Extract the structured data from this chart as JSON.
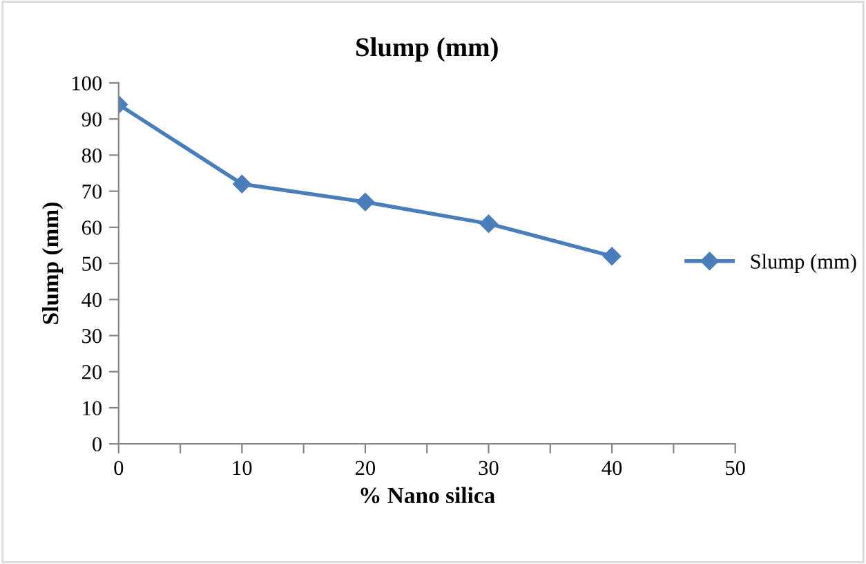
{
  "chart_data": {
    "type": "line",
    "title": "Slump (mm)",
    "xlabel": "% Nano silica",
    "ylabel": "Slump (mm)",
    "x": [
      0,
      10,
      20,
      30,
      40
    ],
    "series": [
      {
        "name": "Slump (mm)",
        "color": "#4a7ebb",
        "values": [
          94,
          72,
          67,
          61,
          52
        ]
      }
    ],
    "xlim": [
      0,
      50
    ],
    "xticks": [
      0,
      {
        "value": 5,
        "label": null
      },
      10,
      {
        "value": 15,
        "label": null
      },
      20,
      {
        "value": 25,
        "label": null
      },
      30,
      {
        "value": 35,
        "label": null
      },
      40,
      {
        "value": 45,
        "label": null
      },
      50
    ],
    "ylim": [
      0,
      100
    ],
    "yticks": [
      0,
      10,
      20,
      30,
      40,
      50,
      60,
      70,
      80,
      90,
      100
    ],
    "grid": false,
    "legend": "right",
    "marker": "diamond",
    "line_style": "solid"
  }
}
